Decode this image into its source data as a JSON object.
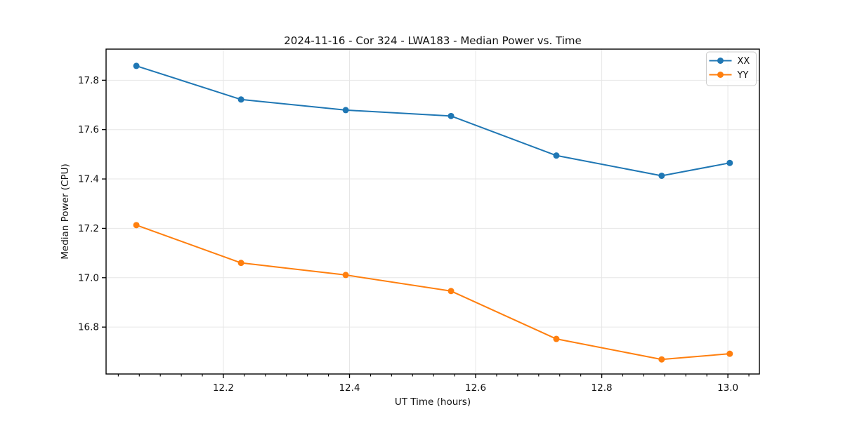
{
  "figure": {
    "background": "#ffffff"
  },
  "chart_data": {
    "type": "line",
    "title": "2024-11-16 - Cor 324 - LWA183 - Median Power vs. Time",
    "xlabel": "UT Time (hours)",
    "ylabel": "Median Power (CPU)",
    "x": [
      12.062,
      12.228,
      12.394,
      12.561,
      12.728,
      12.895,
      13.003
    ],
    "series": [
      {
        "name": "XX",
        "color": "#1f77b4",
        "values": [
          17.858,
          17.722,
          17.679,
          17.655,
          17.495,
          17.413,
          17.465
        ]
      },
      {
        "name": "YY",
        "color": "#ff7f0e",
        "values": [
          17.213,
          17.06,
          17.011,
          16.946,
          16.752,
          16.669,
          16.692
        ]
      }
    ],
    "xlim": [
      12.014,
      13.05
    ],
    "ylim": [
      16.61,
      17.926
    ],
    "xticks": [
      12.2,
      12.4,
      12.6,
      12.8,
      13.0
    ],
    "yticks": [
      16.8,
      17.0,
      17.2,
      17.4,
      17.6,
      17.8
    ],
    "x_minor_step_minutes": 2,
    "tick_decimals": 1,
    "grid": true,
    "legend": {
      "position": "upper right",
      "entries": [
        "XX",
        "YY"
      ]
    },
    "style_colors": {
      "grid": "#e6e6e6",
      "spine": "#000000",
      "tick": "#000000",
      "text": "#111111",
      "legend_border": "#cccccc",
      "legend_background": "#ffffff"
    }
  }
}
